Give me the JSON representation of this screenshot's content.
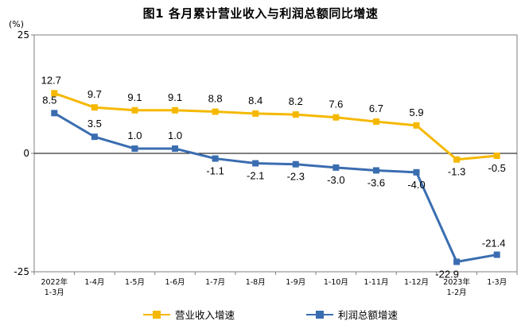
{
  "chart_data": {
    "type": "line",
    "title": "图1  各月累计营业收入与利润总额同比增速",
    "unit": "(%)",
    "categories": [
      [
        "2022年",
        "1-3月"
      ],
      [
        "1-4月"
      ],
      [
        "1-5月"
      ],
      [
        "1-6月"
      ],
      [
        "1-7月"
      ],
      [
        "1-8月"
      ],
      [
        "1-9月"
      ],
      [
        "1-10月"
      ],
      [
        "1-11月"
      ],
      [
        "1-12月"
      ],
      [
        "2023年",
        "1-2月"
      ],
      [
        "1-3月"
      ]
    ],
    "ylim": [
      -25,
      25
    ],
    "yticks": [
      {
        "value": 25,
        "label": "25"
      },
      {
        "value": 0,
        "label": "0"
      },
      {
        "value": -25,
        "label": "-25"
      }
    ],
    "grid": false,
    "legend_position": "bottom",
    "series": [
      {
        "name": "营业收入增速",
        "color": "#F5B800",
        "values": [
          12.7,
          9.7,
          9.1,
          9.1,
          8.8,
          8.4,
          8.2,
          7.6,
          6.7,
          5.9,
          -1.3,
          -0.5
        ],
        "labels": [
          "12.7",
          "9.7",
          "9.1",
          "9.1",
          "8.8",
          "8.4",
          "8.2",
          "7.6",
          "6.7",
          "5.9",
          "-1.3",
          "-0.5"
        ]
      },
      {
        "name": "利润总额增速",
        "color": "#3A6DB0",
        "values": [
          8.5,
          3.5,
          1.0,
          1.0,
          -1.1,
          -2.1,
          -2.3,
          -3.0,
          -3.6,
          -4.0,
          -22.9,
          -21.4
        ],
        "labels": [
          "8.5",
          "3.5",
          "1.0",
          "1.0",
          "-1.1",
          "-2.1",
          "-2.3",
          "-3.0",
          "-3.6",
          "-4.0",
          "-22.9",
          "-21.4"
        ]
      }
    ]
  }
}
